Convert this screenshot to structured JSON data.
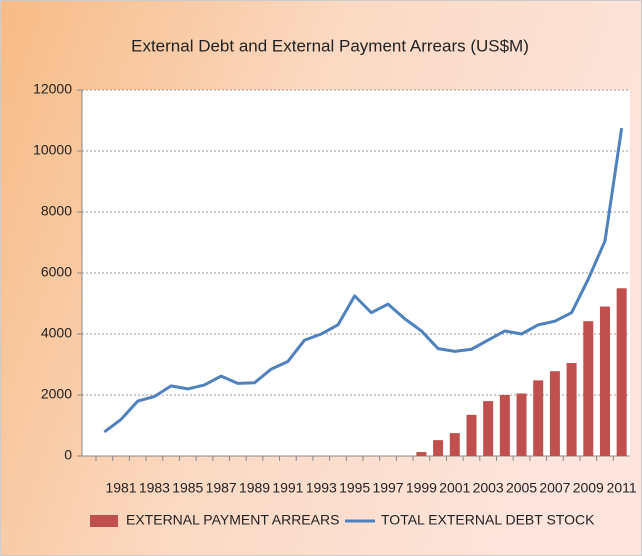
{
  "chart_data": {
    "type": "bar-line",
    "title": "External Debt and External Payment Arrears (US$M)",
    "categories": [
      null,
      "1981",
      null,
      "1983",
      null,
      "1985",
      null,
      "1987",
      null,
      "1989",
      null,
      "1991",
      null,
      "1993",
      null,
      "1995",
      null,
      "1997",
      null,
      "1999",
      null,
      "2001",
      null,
      "2003",
      null,
      "2005",
      null,
      "2007",
      null,
      "2009",
      null,
      "2011"
    ],
    "series": [
      {
        "name": "EXTERNAL PAYMENT ARREARS",
        "type": "bar",
        "color": "#c0504d",
        "values": [
          null,
          null,
          null,
          null,
          null,
          null,
          null,
          null,
          null,
          null,
          null,
          null,
          null,
          null,
          null,
          null,
          null,
          null,
          null,
          130,
          520,
          750,
          1350,
          1800,
          2000,
          2050,
          2480,
          2780,
          3050,
          4420,
          4900,
          5500
        ]
      },
      {
        "name": "TOTAL EXTERNAL DEBT STOCK",
        "type": "line",
        "color": "#4f81bd",
        "values": [
          790,
          1200,
          1800,
          1950,
          2300,
          2200,
          2330,
          2620,
          2380,
          2400,
          2850,
          3100,
          3800,
          4000,
          4300,
          5250,
          4700,
          4980,
          4500,
          4100,
          3520,
          3430,
          3500,
          3800,
          4100,
          4000,
          4300,
          4420,
          4700,
          5800,
          7050,
          10750
        ]
      }
    ],
    "ylim": [
      0,
      12000
    ],
    "yticks": [
      0,
      2000,
      4000,
      6000,
      8000,
      10000,
      12000
    ],
    "grid": true
  }
}
